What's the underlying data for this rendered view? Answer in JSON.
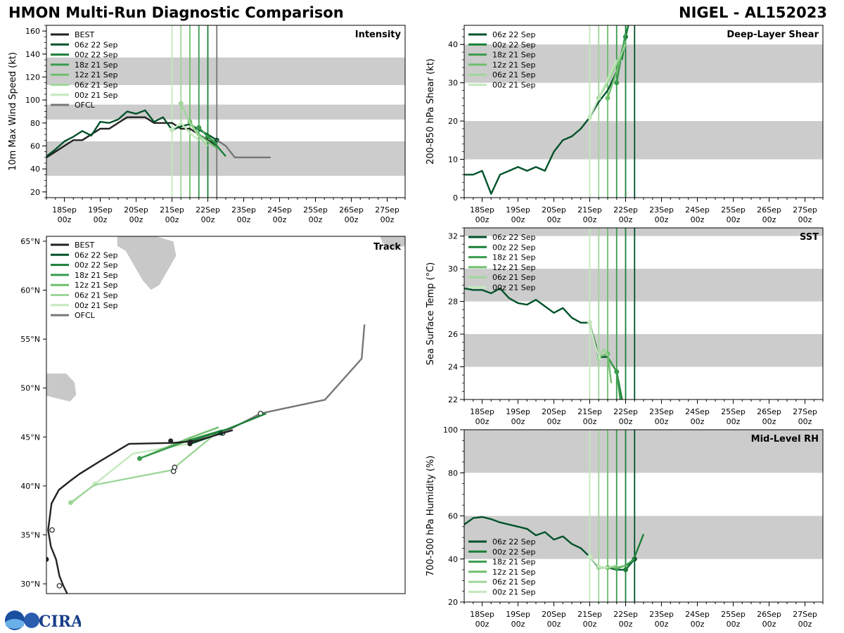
{
  "title_left": "HMON Multi-Run Diagnostic Comparison",
  "title_right": "NIGEL - AL152023",
  "logo_text": "CIRA",
  "colors": {
    "BEST": "#222222",
    "OFCL": "#777777",
    "06z 22 Sep": "#00522a",
    "00z 22 Sep": "#1a7f37",
    "18z 21 Sep": "#3a9b4e",
    "12z 21 Sep": "#6fbf6c",
    "06z 21 Sep": "#9fd69a",
    "00z 21 Sep": "#c4e8bd",
    "band": "#cccccc",
    "land": "#c8c8c8"
  },
  "time_axis": {
    "tick_labels": [
      [
        "18Sep",
        "00z"
      ],
      [
        "19Sep",
        "00z"
      ],
      [
        "20Sep",
        "00z"
      ],
      [
        "21Sep",
        "00z"
      ],
      [
        "22Sep",
        "00z"
      ],
      [
        "23Sep",
        "00z"
      ],
      [
        "24Sep",
        "00z"
      ],
      [
        "25Sep",
        "00z"
      ],
      [
        "26Sep",
        "00z"
      ],
      [
        "27Sep",
        "00z"
      ]
    ],
    "xlim_days": [
      17.5,
      27.5
    ]
  },
  "chart_data": [
    {
      "id": "intensity",
      "type": "line",
      "title": "Intensity",
      "ylabel": "10m Max Wind Speed (kt)",
      "ylim": [
        15,
        165
      ],
      "yticks": [
        20,
        40,
        60,
        80,
        100,
        120,
        140,
        160
      ],
      "bands": [
        [
          34,
          64
        ],
        [
          83,
          96
        ],
        [
          113,
          137
        ]
      ],
      "legend": [
        "BEST",
        "06z 22 Sep",
        "00z 22 Sep",
        "18z 21 Sep",
        "12z 21 Sep",
        "06z 21 Sep",
        "00z 21 Sep",
        "OFCL"
      ],
      "vlines": [
        {
          "run": "00z 21 Sep",
          "x": 21.0
        },
        {
          "run": "06z 21 Sep",
          "x": 21.25
        },
        {
          "run": "12z 21 Sep",
          "x": 21.5
        },
        {
          "run": "18z 21 Sep",
          "x": 21.75
        },
        {
          "run": "00z 22 Sep",
          "x": 22.0
        },
        {
          "run": "OFCL",
          "x": 22.25
        }
      ],
      "series": [
        {
          "name": "BEST",
          "x": [
            17.5,
            17.75,
            18.0,
            18.25,
            18.5,
            18.75,
            19.0,
            19.25,
            19.5,
            19.75,
            20.0,
            20.25,
            20.5,
            20.75,
            21.0,
            21.25,
            21.5,
            21.75,
            22.0,
            22.25
          ],
          "y": [
            50,
            55,
            60,
            65,
            65,
            70,
            75,
            75,
            80,
            85,
            85,
            85,
            80,
            80,
            80,
            75,
            75,
            70,
            65,
            60
          ]
        },
        {
          "name": "06z 22 Sep",
          "x": [
            17.5,
            17.75,
            18.0,
            18.25,
            18.5,
            18.75,
            19.0,
            19.25,
            19.5,
            19.75,
            20.0,
            20.25,
            20.5,
            20.75,
            21.0,
            21.25,
            21.5,
            21.75,
            22.0,
            22.25
          ],
          "y": [
            51,
            57,
            64,
            68,
            73,
            69,
            81,
            80,
            83,
            90,
            88,
            91,
            81,
            85,
            74,
            77,
            79,
            74,
            70,
            65
          ],
          "marker": [
            22.25,
            65
          ]
        },
        {
          "name": "00z 22 Sep",
          "x": [
            22.0,
            22.25,
            22.5
          ],
          "y": [
            68,
            60,
            51
          ],
          "marker": [
            22.0,
            68
          ]
        },
        {
          "name": "18z 21 Sep",
          "x": [
            21.75,
            22.0,
            22.25
          ],
          "y": [
            76,
            68,
            62
          ],
          "marker": [
            21.75,
            76
          ]
        },
        {
          "name": "12z 21 Sep",
          "x": [
            21.5,
            21.75,
            22.0,
            22.25
          ],
          "y": [
            81,
            70,
            64,
            58
          ],
          "marker": [
            21.5,
            81
          ]
        },
        {
          "name": "06z 21 Sep",
          "x": [
            21.25,
            21.5,
            21.75,
            22.0
          ],
          "y": [
            97,
            80,
            68,
            60
          ],
          "marker": [
            21.25,
            97
          ]
        },
        {
          "name": "00z 21 Sep",
          "x": [
            21.0,
            21.25,
            21.5,
            21.75
          ],
          "y": [
            74,
            80,
            71,
            65
          ],
          "marker": [
            21.0,
            74
          ]
        },
        {
          "name": "OFCL",
          "x": [
            22.25,
            22.5,
            22.75,
            23.25,
            23.75
          ],
          "y": [
            65,
            60,
            50,
            50,
            50
          ]
        }
      ]
    },
    {
      "id": "shear",
      "type": "line",
      "title": "Deep-Layer Shear",
      "ylabel": "200-850 hPa Shear (kt)",
      "ylim": [
        0,
        45
      ],
      "yticks": [
        0,
        10,
        20,
        30,
        40
      ],
      "bands": [
        [
          10,
          20
        ],
        [
          30,
          40
        ]
      ],
      "legend": [
        "06z 22 Sep",
        "00z 22 Sep",
        "18z 21 Sep",
        "12z 21 Sep",
        "06z 21 Sep",
        "00z 21 Sep"
      ],
      "vlines": [
        {
          "run": "00z 21 Sep",
          "x": 21.0
        },
        {
          "run": "06z 21 Sep",
          "x": 21.25
        },
        {
          "run": "12z 21 Sep",
          "x": 21.5
        },
        {
          "run": "18z 21 Sep",
          "x": 21.75
        },
        {
          "run": "00z 22 Sep",
          "x": 22.0
        },
        {
          "run": "06z 22 Sep",
          "x": 22.25
        }
      ],
      "series": [
        {
          "name": "06z 22 Sep",
          "x": [
            17.5,
            17.75,
            18.0,
            18.25,
            18.5,
            18.75,
            19.0,
            19.25,
            19.5,
            19.75,
            20.0,
            20.25,
            20.5,
            20.75,
            21.0,
            21.25,
            21.5,
            21.75,
            22.0,
            22.1
          ],
          "y": [
            6,
            6,
            7,
            1,
            6,
            7,
            8,
            7,
            8,
            7,
            12,
            15,
            16,
            18,
            21,
            25,
            28,
            33,
            42,
            46
          ]
        },
        {
          "name": "00z 22 Sep",
          "x": [
            21.9,
            22.0,
            22.1
          ],
          "y": [
            36,
            42,
            46
          ],
          "marker": [
            22.0,
            42
          ]
        },
        {
          "name": "18z 21 Sep",
          "x": [
            21.75,
            21.9,
            22.0
          ],
          "y": [
            30,
            38,
            43
          ],
          "marker": [
            21.75,
            30
          ]
        },
        {
          "name": "12z 21 Sep",
          "x": [
            21.5,
            21.75,
            22.0
          ],
          "y": [
            26,
            33,
            41
          ],
          "marker": [
            21.5,
            26
          ]
        },
        {
          "name": "06z 21 Sep",
          "x": [
            21.25,
            21.5,
            21.75,
            22.0
          ],
          "y": [
            26,
            30,
            35,
            40
          ],
          "marker": [
            21.25,
            26
          ]
        },
        {
          "name": "00z 21 Sep",
          "x": [
            21.0,
            21.25,
            21.5,
            21.75
          ],
          "y": [
            21,
            26,
            31,
            36
          ],
          "marker": [
            21.0,
            21
          ]
        }
      ]
    },
    {
      "id": "sst",
      "type": "line",
      "title": "SST",
      "ylabel": "Sea Surface Temp (°C)",
      "ylim": [
        22,
        32.5
      ],
      "yticks": [
        22,
        24,
        26,
        28,
        30,
        32
      ],
      "bands": [
        [
          24,
          26
        ],
        [
          28,
          30
        ],
        [
          32,
          34
        ]
      ],
      "legend": [
        "06z 22 Sep",
        "00z 22 Sep",
        "18z 21 Sep",
        "12z 21 Sep",
        "06z 21 Sep",
        "00z 21 Sep"
      ],
      "vlines": [
        {
          "run": "00z 21 Sep",
          "x": 21.0
        },
        {
          "run": "06z 21 Sep",
          "x": 21.25
        },
        {
          "run": "12z 21 Sep",
          "x": 21.5
        },
        {
          "run": "18z 21 Sep",
          "x": 21.75
        },
        {
          "run": "00z 22 Sep",
          "x": 22.0
        },
        {
          "run": "06z 22 Sep",
          "x": 22.25
        }
      ],
      "series": [
        {
          "name": "06z 22 Sep",
          "x": [
            17.5,
            17.75,
            18.0,
            18.25,
            18.5,
            18.75,
            19.0,
            19.25,
            19.5,
            19.75,
            20.0,
            20.25,
            20.5,
            20.75,
            21.0,
            21.25,
            21.5
          ],
          "y": [
            28.8,
            28.7,
            28.7,
            28.5,
            28.8,
            28.2,
            27.9,
            27.8,
            28.1,
            27.7,
            27.3,
            27.6,
            27.0,
            26.7,
            26.7,
            24.6,
            24.6
          ]
        },
        {
          "name": "00z 22 Sep",
          "x": [
            21.5,
            21.75,
            21.9
          ],
          "y": [
            24.6,
            23.7,
            22.0
          ]
        },
        {
          "name": "18z 21 Sep",
          "x": [
            21.5,
            21.75,
            21.85
          ],
          "y": [
            24.6,
            23.7,
            22.0
          ],
          "marker": [
            21.75,
            23.7
          ]
        },
        {
          "name": "12z 21 Sep",
          "x": [
            21.25,
            21.5,
            21.6
          ],
          "y": [
            24.6,
            24.8,
            23.0
          ],
          "marker": [
            21.5,
            24.8
          ]
        },
        {
          "name": "06z 21 Sep",
          "x": [
            21.25,
            21.4,
            21.5
          ],
          "y": [
            24.5,
            25.1,
            24.7
          ],
          "marker": [
            21.25,
            24.5
          ]
        },
        {
          "name": "00z 21 Sep",
          "x": [
            21.0,
            21.15,
            21.3
          ],
          "y": [
            26.7,
            25.3,
            24.4
          ],
          "marker": [
            21.0,
            26.7
          ]
        }
      ]
    },
    {
      "id": "rh",
      "type": "line",
      "title": "Mid-Level RH",
      "ylabel": "700-500 hPa Humidity (%)",
      "ylim": [
        20,
        100
      ],
      "yticks": [
        20,
        40,
        60,
        80,
        100
      ],
      "bands": [
        [
          40,
          60
        ],
        [
          80,
          100
        ]
      ],
      "legend": [
        "06z 22 Sep",
        "00z 22 Sep",
        "18z 21 Sep",
        "12z 21 Sep",
        "06z 21 Sep",
        "00z 21 Sep"
      ],
      "vlines": [
        {
          "run": "00z 21 Sep",
          "x": 21.0
        },
        {
          "run": "06z 21 Sep",
          "x": 21.25
        },
        {
          "run": "12z 21 Sep",
          "x": 21.5
        },
        {
          "run": "18z 21 Sep",
          "x": 21.75
        },
        {
          "run": "00z 22 Sep",
          "x": 22.0
        },
        {
          "run": "06z 22 Sep",
          "x": 22.25
        }
      ],
      "series": [
        {
          "name": "06z 22 Sep",
          "x": [
            17.5,
            17.75,
            18.0,
            18.25,
            18.5,
            18.75,
            19.0,
            19.25,
            19.5,
            19.75,
            20.0,
            20.25,
            20.5,
            20.75,
            21.0,
            21.25,
            21.5,
            21.75,
            22.0,
            22.25
          ],
          "y": [
            56,
            59,
            59.5,
            58.5,
            57,
            56,
            55,
            54,
            51,
            52.5,
            49,
            50.5,
            47,
            45,
            41,
            36,
            36,
            35,
            35,
            40
          ],
          "marker": [
            22.25,
            40
          ]
        },
        {
          "name": "00z 22 Sep",
          "x": [
            22.0,
            22.25,
            22.5
          ],
          "y": [
            35,
            41,
            51.5
          ],
          "marker": [
            22.0,
            35
          ]
        },
        {
          "name": "18z 21 Sep",
          "x": [
            21.75,
            22.0,
            22.25
          ],
          "y": [
            35.5,
            37,
            40
          ],
          "marker": [
            21.75,
            35.5
          ]
        },
        {
          "name": "12z 21 Sep",
          "x": [
            21.5,
            21.75,
            22.0
          ],
          "y": [
            36,
            36,
            37
          ],
          "marker": [
            21.5,
            36
          ]
        },
        {
          "name": "06z 21 Sep",
          "x": [
            21.25,
            21.5,
            21.75
          ],
          "y": [
            36,
            36,
            37
          ],
          "marker": [
            21.25,
            36
          ]
        },
        {
          "name": "00z 21 Sep",
          "x": [
            21.0,
            21.25,
            21.5
          ],
          "y": [
            41,
            36.5,
            36
          ],
          "marker": [
            21.0,
            41
          ]
        }
      ]
    },
    {
      "id": "track",
      "type": "line",
      "title": "Track",
      "ylim": [
        29,
        65.5
      ],
      "lon_range": [
        -63.5,
        0
      ],
      "yticks": [
        30,
        35,
        40,
        45,
        50,
        55,
        60,
        65
      ],
      "ytick_labels": [
        "30°N",
        "35°N",
        "40°N",
        "45°N",
        "50°N",
        "55°N",
        "60°N",
        "65°N"
      ],
      "legend": [
        "BEST",
        "06z 22 Sep",
        "00z 22 Sep",
        "18z 21 Sep",
        "12z 21 Sep",
        "06z 21 Sep",
        "00z 21 Sep",
        "OFCL"
      ],
      "series": [
        {
          "name": "BEST",
          "lon": [
            -59.4,
            -60.5,
            -61.2,
            -61.8,
            -62.7,
            -63.2,
            -62.9,
            -62.6,
            -61.3,
            -59.1,
            -57.7,
            -54.1,
            -48.9,
            -41.1,
            -37.0,
            -30.5
          ],
          "lat": [
            28.5,
            29.8,
            30.8,
            32.5,
            33.8,
            35.5,
            36.8,
            38.2,
            39.6,
            40.6,
            41.2,
            42.5,
            44.3,
            44.4,
            44.6,
            45.7
          ],
          "open_pts": [
            [
              -61.2,
              29.8
            ],
            [
              -62.5,
              35.5
            ],
            [
              -41.0,
              41.5
            ],
            [
              -40.8,
              41.9
            ]
          ],
          "filled_pts": [
            [
              -63.5,
              32.5
            ],
            [
              -41.5,
              44.6
            ],
            [
              -38.1,
              44.3
            ],
            [
              -38.0,
              44.5
            ]
          ]
        },
        {
          "name": "06z 22 Sep",
          "lon": [
            -38.0,
            -32.6
          ],
          "lat": [
            44.3,
            45.4
          ],
          "marker": [
            -32.6,
            45.4
          ]
        },
        {
          "name": "00z 22 Sep",
          "lon": [
            -38.0,
            -31.5,
            -24.6
          ],
          "lat": [
            44.6,
            45.8,
            47.4
          ]
        },
        {
          "name": "18z 21 Sep",
          "lon": [
            -47.0,
            -38.2,
            -32.3
          ],
          "lat": [
            42.8,
            44.7,
            45.7
          ],
          "marker": [
            -47.0,
            42.8
          ]
        },
        {
          "name": "12z 21 Sep",
          "lon": [
            -47.0,
            -38.2,
            -33.0
          ],
          "lat": [
            42.8,
            44.9,
            46.0
          ]
        },
        {
          "name": "06z 21 Sep",
          "lon": [
            -59.2,
            -55.0,
            -41.4,
            -32.8
          ],
          "lat": [
            38.3,
            40.1,
            41.6,
            45.7
          ],
          "marker": [
            -59.2,
            38.3
          ]
        },
        {
          "name": "00z 21 Sep",
          "lon": [
            -59.2,
            -54.9,
            -48.2,
            -38.4
          ],
          "lat": [
            38.2,
            40.2,
            43.3,
            44.3
          ],
          "marker": [
            -54.9,
            40.2
          ]
        },
        {
          "name": "OFCL",
          "lon": [
            -32.3,
            -25.6,
            -14.2,
            -7.7,
            -7.2
          ],
          "lat": [
            45.4,
            47.4,
            48.8,
            53.0,
            56.5
          ],
          "open_pts": [
            [
              -32.3,
              45.4
            ],
            [
              -25.6,
              47.4
            ]
          ]
        }
      ]
    }
  ]
}
